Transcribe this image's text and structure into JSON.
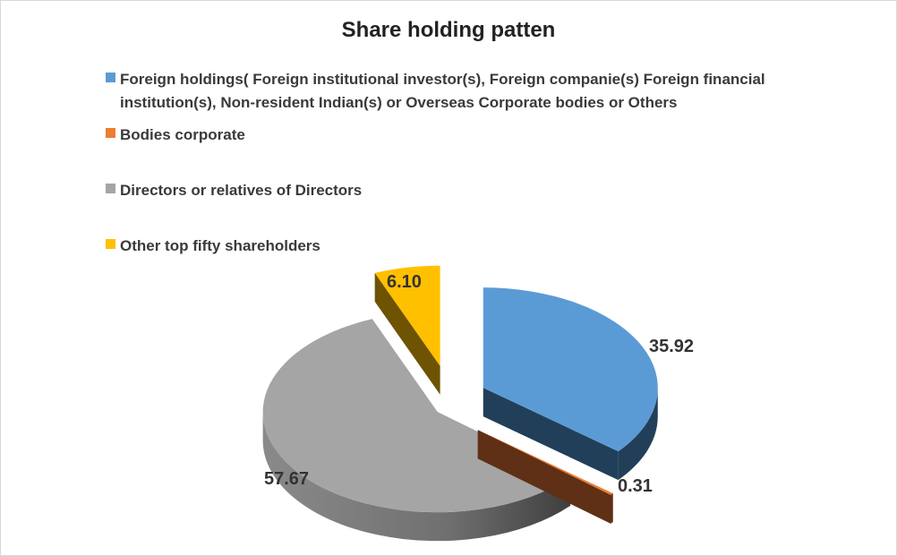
{
  "chart_data": {
    "type": "pie",
    "title": "Share holding patten",
    "legend_position": "top",
    "style": "3d-exploded",
    "series": [
      {
        "name": "Foreign holdings( Foreign institutional investor(s), Foreign companie(s) Foreign financial institution(s), Non-resident Indian(s) or Overseas Corporate bodies or Others",
        "value": 35.92,
        "label": "35.92",
        "color": "#5b9bd5",
        "side_color": "#223f59"
      },
      {
        "name": "Bodies corporate",
        "value": 0.31,
        "label": "0.31",
        "color": "#ed7d31",
        "side_color": "#5f3015"
      },
      {
        "name": "Directors or relatives of Directors",
        "value": 57.67,
        "label": "57.67",
        "color": "#a5a5a5",
        "side_color": "#6f6f6f"
      },
      {
        "name": "Other top fifty shareholders",
        "value": 6.1,
        "label": "6.10",
        "color": "#ffc000",
        "side_color": "#6e5303"
      }
    ]
  }
}
